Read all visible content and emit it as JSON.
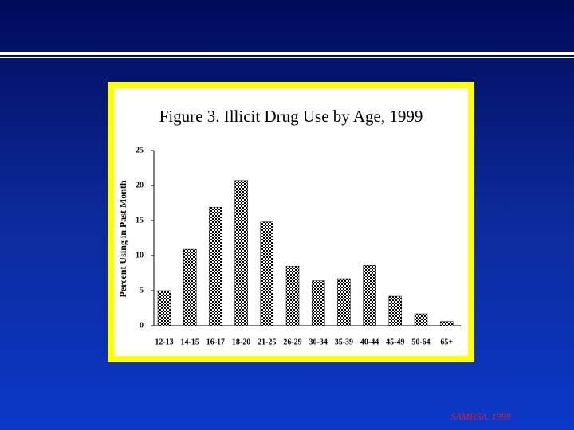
{
  "chart_data": {
    "type": "bar",
    "title": "Figure 3.  Illicit Drug Use by Age, 1999",
    "y_label": "Percent Using in Past Month",
    "categories": [
      "12-13",
      "14-15",
      "16-17",
      "18-20",
      "21-25",
      "26-29",
      "30-34",
      "35-39",
      "40-44",
      "45-49",
      "50-64",
      "65+"
    ],
    "values": [
      5.0,
      10.9,
      16.9,
      20.7,
      14.8,
      8.5,
      6.4,
      6.7,
      8.6,
      4.2,
      1.7,
      0.6
    ],
    "color": "#000000",
    "ylim": [
      0,
      25
    ],
    "yticks": [
      0,
      5,
      10,
      15,
      20,
      25
    ],
    "grid": false
  },
  "source": "SAMHSA, 1999"
}
